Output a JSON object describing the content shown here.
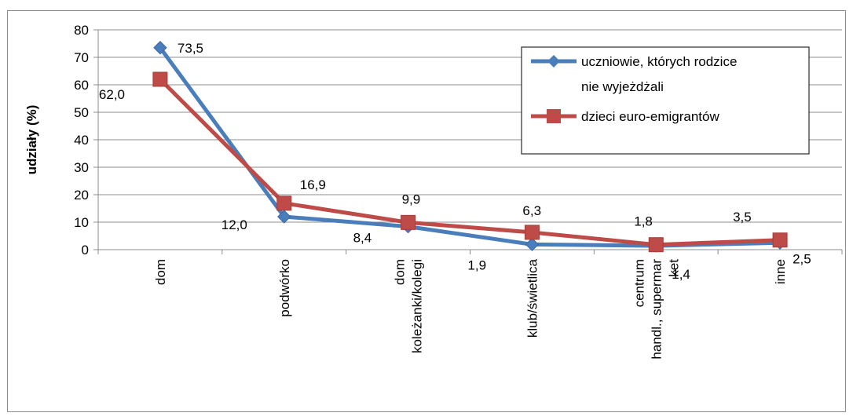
{
  "chart_data": {
    "type": "line",
    "ylabel": "udziały (%)",
    "xlabel": "",
    "ylim": [
      0,
      80
    ],
    "yticks": [
      "0",
      "10",
      "20",
      "30",
      "40",
      "50",
      "60",
      "70",
      "80"
    ],
    "categories": [
      [
        "dom"
      ],
      [
        "podwórko"
      ],
      [
        "dom",
        "koleżanki/kolegi"
      ],
      [
        "klub/świetlica"
      ],
      [
        "centrum",
        "handl., supermar",
        "ket"
      ],
      [
        "inne"
      ]
    ],
    "series": [
      {
        "name_lines": [
          "uczniowie, których rodzice",
          "nie wyjeżdżali"
        ],
        "color": "#4a7ebb",
        "marker": "diamond",
        "values": [
          73.5,
          12.0,
          8.4,
          1.9,
          1.4,
          2.5
        ],
        "labels": [
          "73,5",
          "12,0",
          "8,4",
          "1,9",
          "1,4",
          "2,5"
        ]
      },
      {
        "name_lines": [
          "dzieci euro-emigrantów"
        ],
        "color": "#be4b48",
        "marker": "square",
        "values": [
          62.0,
          16.9,
          9.9,
          6.3,
          1.8,
          3.5
        ],
        "labels": [
          "62,0",
          "16,9",
          "9,9",
          "6,3",
          "1,8",
          "3,5"
        ]
      }
    ],
    "grid": true,
    "legend_position": "top-right"
  }
}
